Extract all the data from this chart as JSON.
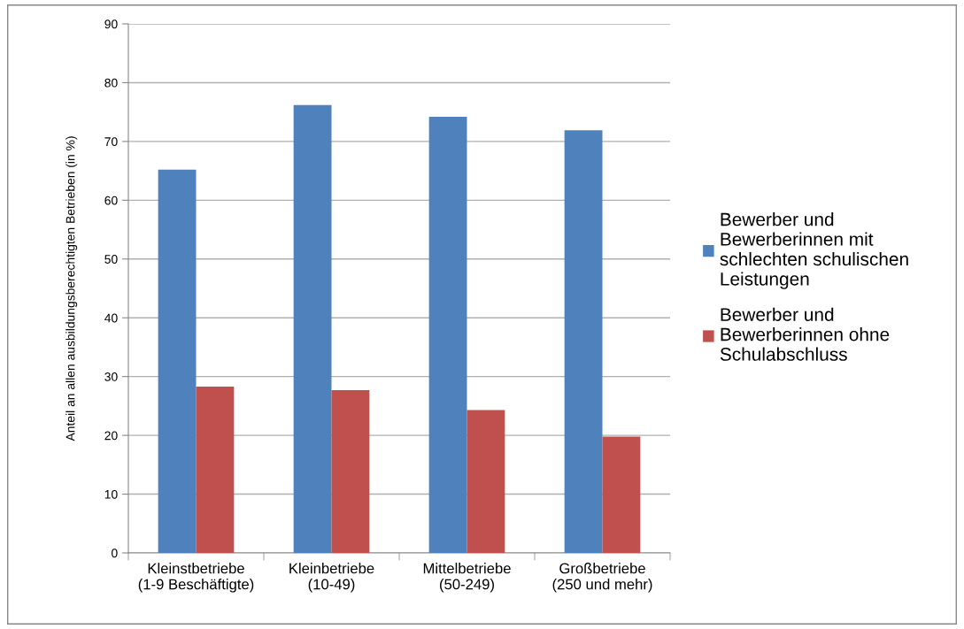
{
  "chart_data": {
    "type": "bar",
    "ylabel": "Anteil an allen ausbildungsberechtigten Betrieben (in %)",
    "categories": [
      "Kleinstbetriebe\n(1-9 Beschäftigte)",
      "Kleinbetriebe\n(10-49)",
      "Mittelbetriebe\n(50-249)",
      "Großbetriebe\n(250 und mehr)"
    ],
    "series": [
      {
        "name": "Bewerber und Bewerberinnen mit schlechten schulischen Leistungen",
        "color": "#4f81bd",
        "values": [
          65.2,
          76.2,
          74.2,
          71.9
        ]
      },
      {
        "name": "Bewerber und Bewerberinnen ohne Schulabschluss",
        "color": "#c0504d",
        "values": [
          28.3,
          27.7,
          24.3,
          19.8
        ]
      }
    ],
    "ylim": [
      0,
      90
    ],
    "yticks": [
      0,
      10,
      20,
      30,
      40,
      50,
      60,
      70,
      80,
      90
    ],
    "grid": "y",
    "legend": "right"
  }
}
